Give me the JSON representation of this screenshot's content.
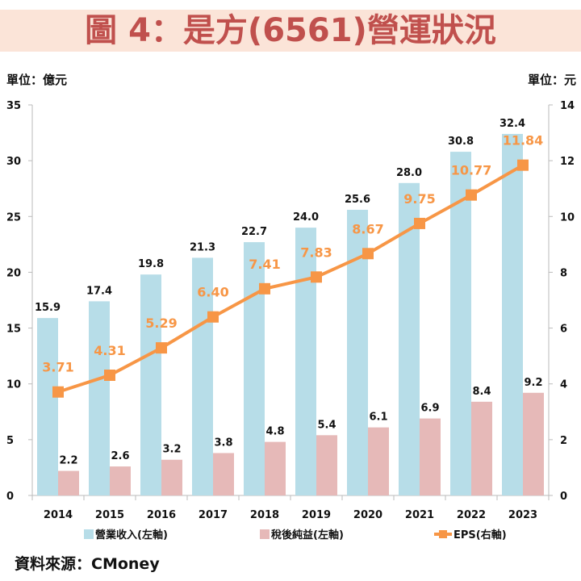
{
  "title": "圖 4：是方(6561)營運狀況",
  "unit_left": "單位：億元",
  "unit_right": "單位：元",
  "source": "資料來源：CMoney",
  "chart_data": {
    "type": "bar+line",
    "categories": [
      "2014",
      "2015",
      "2016",
      "2017",
      "2018",
      "2019",
      "2020",
      "2021",
      "2022",
      "2023"
    ],
    "series": [
      {
        "name": "營業收入(左軸)",
        "type": "bar",
        "axis": "left",
        "color": "#b7dde8",
        "values": [
          15.9,
          17.4,
          19.8,
          21.3,
          22.7,
          24.0,
          25.6,
          28.0,
          30.8,
          32.4
        ]
      },
      {
        "name": "稅後純益(左軸)",
        "type": "bar",
        "axis": "left",
        "color": "#e6b9b8",
        "values": [
          2.2,
          2.6,
          3.2,
          3.8,
          4.8,
          5.4,
          6.1,
          6.9,
          8.4,
          9.2
        ]
      },
      {
        "name": "EPS(右軸)",
        "type": "line",
        "axis": "right",
        "color": "#f79646",
        "values": [
          3.71,
          4.31,
          5.29,
          6.4,
          7.41,
          7.83,
          8.67,
          9.75,
          10.77,
          11.84
        ]
      }
    ],
    "y_left": {
      "range": [
        0,
        35
      ],
      "ticks": [
        "0",
        "5",
        "10",
        "15",
        "20",
        "25",
        "30",
        "35"
      ]
    },
    "y_right": {
      "range": [
        0,
        14
      ],
      "ticks": [
        "0",
        "2",
        "4",
        "6",
        "8",
        "10",
        "12",
        "14"
      ]
    },
    "grid": "vertical category separators",
    "legend": "bottom"
  }
}
